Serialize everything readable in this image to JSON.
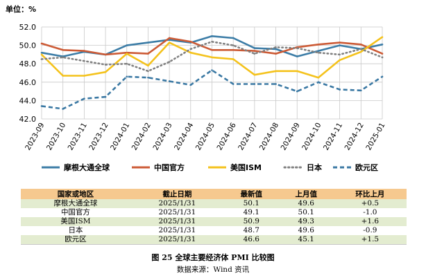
{
  "unit_label": "单位：%",
  "chart_data": {
    "type": "line",
    "categories": [
      "2023-09",
      "2023-10",
      "2023-11",
      "2023-12",
      "2024-01",
      "2024-02",
      "2024-03",
      "2024-04",
      "2024-05",
      "2024-06",
      "2024-07",
      "2024-08",
      "2024-09",
      "2024-10",
      "2024-11",
      "2024-12",
      "2025-01"
    ],
    "y_ticks": [
      "42.0",
      "44.0",
      "46.0",
      "48.0",
      "50.0",
      "52.0"
    ],
    "ylim": [
      42,
      52
    ],
    "grid": true,
    "legend_position": "bottom",
    "series": [
      {
        "name": "摩根大通全球",
        "color": "#3b7ca6",
        "style": "solid",
        "values": [
          49.2,
          48.8,
          49.3,
          49.0,
          50.0,
          50.3,
          50.6,
          50.3,
          51.0,
          50.8,
          49.7,
          49.6,
          48.8,
          49.4,
          50.0,
          49.6,
          50.1
        ]
      },
      {
        "name": "中国官方",
        "color": "#cc5a35",
        "style": "solid",
        "values": [
          50.2,
          49.5,
          49.4,
          49.0,
          49.2,
          49.1,
          50.8,
          50.4,
          49.5,
          49.5,
          49.4,
          49.1,
          49.8,
          50.1,
          50.3,
          50.1,
          49.1
        ]
      },
      {
        "name": "美国ISM",
        "color": "#f4c21b",
        "style": "solid",
        "values": [
          49.0,
          46.7,
          46.7,
          47.1,
          49.1,
          47.8,
          50.3,
          49.2,
          48.7,
          48.5,
          46.8,
          47.2,
          47.2,
          46.5,
          48.4,
          49.3,
          50.9
        ]
      },
      {
        "name": "日本",
        "color": "#808080",
        "style": "dotted",
        "values": [
          48.5,
          48.7,
          48.3,
          47.9,
          48.0,
          47.2,
          48.2,
          49.6,
          50.4,
          50.0,
          49.1,
          49.8,
          49.7,
          49.2,
          49.0,
          49.6,
          48.7
        ]
      },
      {
        "name": "欧元区",
        "color": "#3a78a3",
        "style": "dashed",
        "values": [
          43.4,
          43.1,
          44.2,
          44.4,
          46.6,
          46.5,
          46.1,
          45.7,
          47.3,
          45.8,
          45.8,
          45.8,
          45.0,
          46.0,
          45.2,
          45.1,
          46.6
        ]
      }
    ]
  },
  "table": {
    "headers": [
      "国家或地区",
      "截止日期",
      "最新值",
      "上月值",
      "环比上月"
    ],
    "rows": [
      [
        "摩根大通全球",
        "2025/1/31",
        "50.1",
        "49.6",
        "+0.5"
      ],
      [
        "中国官方",
        "2025/1/31",
        "49.1",
        "50.1",
        "-1.0"
      ],
      [
        "美国ISM",
        "2025/1/31",
        "50.9",
        "49.3",
        "+1.6"
      ],
      [
        "日本",
        "2025/1/31",
        "48.7",
        "49.6",
        "-0.9"
      ],
      [
        "欧元区",
        "2025/1/31",
        "46.6",
        "45.1",
        "+1.5"
      ]
    ]
  },
  "caption": "图 25   全球主要经济体 PMI 比较图",
  "source": "数据来源：Wind 资讯"
}
